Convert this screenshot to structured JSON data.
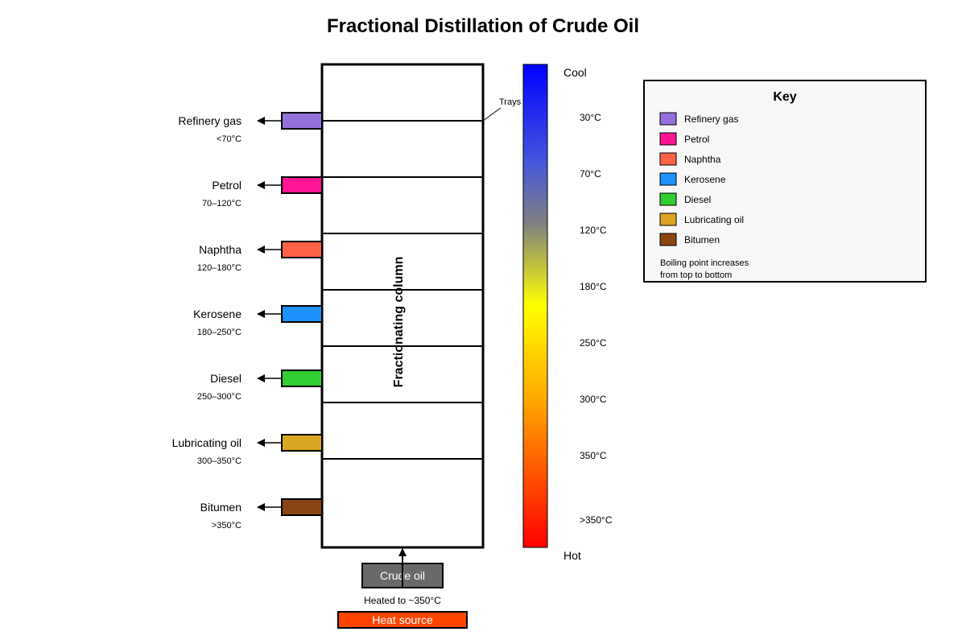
{
  "title": "Fractional Distillation of Crude Oil",
  "column_label": "Fractionating column",
  "trays_label": "Trays",
  "fractions": [
    {
      "name": "Refinery gas",
      "range": "<70°C",
      "color": "#9370DB"
    },
    {
      "name": "Petrol",
      "range": "70–120°C",
      "color": "#FF1493"
    },
    {
      "name": "Naphtha",
      "range": "120–180°C",
      "color": "#FF6347"
    },
    {
      "name": "Kerosene",
      "range": "180–250°C",
      "color": "#1E90FF"
    },
    {
      "name": "Diesel",
      "range": "250–300°C",
      "color": "#32CD32"
    },
    {
      "name": "Lubricating oil",
      "range": "300–350°C",
      "color": "#DAA520"
    },
    {
      "name": "Bitumen",
      "range": ">350°C",
      "color": "#8B4513"
    }
  ],
  "temperature_scale": {
    "top_label": "Cool",
    "bottom_label": "Hot",
    "ticks": [
      "30°C",
      "70°C",
      "120°C",
      "180°C",
      "250°C",
      "300°C",
      "350°C",
      ">350°C"
    ]
  },
  "feed": {
    "label": "Crude oil",
    "note": "Heated to ~350°C",
    "heat_label": "Heat source",
    "crude_color": "#696969",
    "heat_color": "#FF4500"
  },
  "key": {
    "title": "Key",
    "note_line1": "Boiling point increases",
    "note_line2": "from top to bottom"
  }
}
